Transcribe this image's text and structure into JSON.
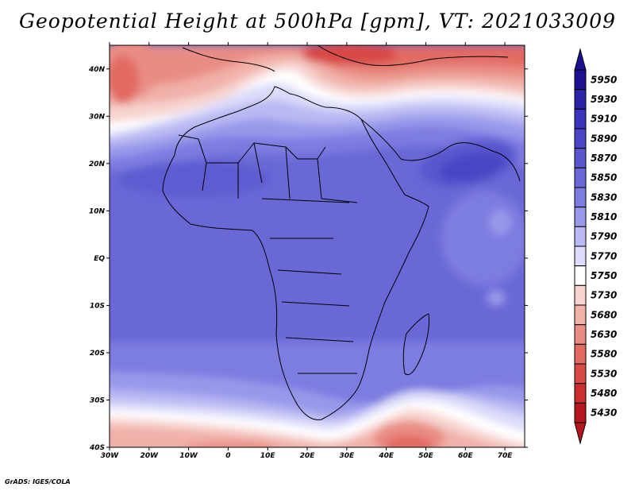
{
  "title": "Geopotential Height at 500hPa [gpm], VT: 2021033009",
  "footer": "GrADS: IGES/COLA",
  "map": {
    "variable": "Geopotential Height",
    "level": "500hPa",
    "units": "gpm",
    "valid_time": "2021033009",
    "lon_range": [
      -30,
      75
    ],
    "lat_range": [
      -40,
      45
    ],
    "lat_labels": [
      "40N",
      "30N",
      "20N",
      "10N",
      "EQ",
      "10S",
      "20S",
      "30S",
      "40S"
    ],
    "lat_values": [
      40,
      30,
      20,
      10,
      0,
      -10,
      -20,
      -30,
      -40
    ],
    "lon_labels": [
      "30W",
      "20W",
      "10W",
      "0",
      "10E",
      "20E",
      "30E",
      "40E",
      "50E",
      "60E",
      "70E"
    ],
    "lon_values": [
      -30,
      -20,
      -10,
      0,
      10,
      20,
      30,
      40,
      50,
      60,
      70
    ]
  },
  "colorbar": {
    "levels": [
      "5950",
      "5930",
      "5910",
      "5890",
      "5870",
      "5850",
      "5830",
      "5810",
      "5790",
      "5770",
      "5750",
      "5730",
      "5680",
      "5630",
      "5580",
      "5530",
      "5480",
      "5430"
    ],
    "colors_top_to_bottom": [
      "#1b1190",
      "#2a23a6",
      "#3a33bb",
      "#4a45c4",
      "#5a57ce",
      "#6a68d6",
      "#7d7ce0",
      "#9898ea",
      "#b9b9f3",
      "#dcdcfa",
      "#ffffff",
      "#f7d4d0",
      "#f0b1a9",
      "#e98d84",
      "#e16a62",
      "#d84a46",
      "#cc2d2e",
      "#b3161c"
    ]
  }
}
